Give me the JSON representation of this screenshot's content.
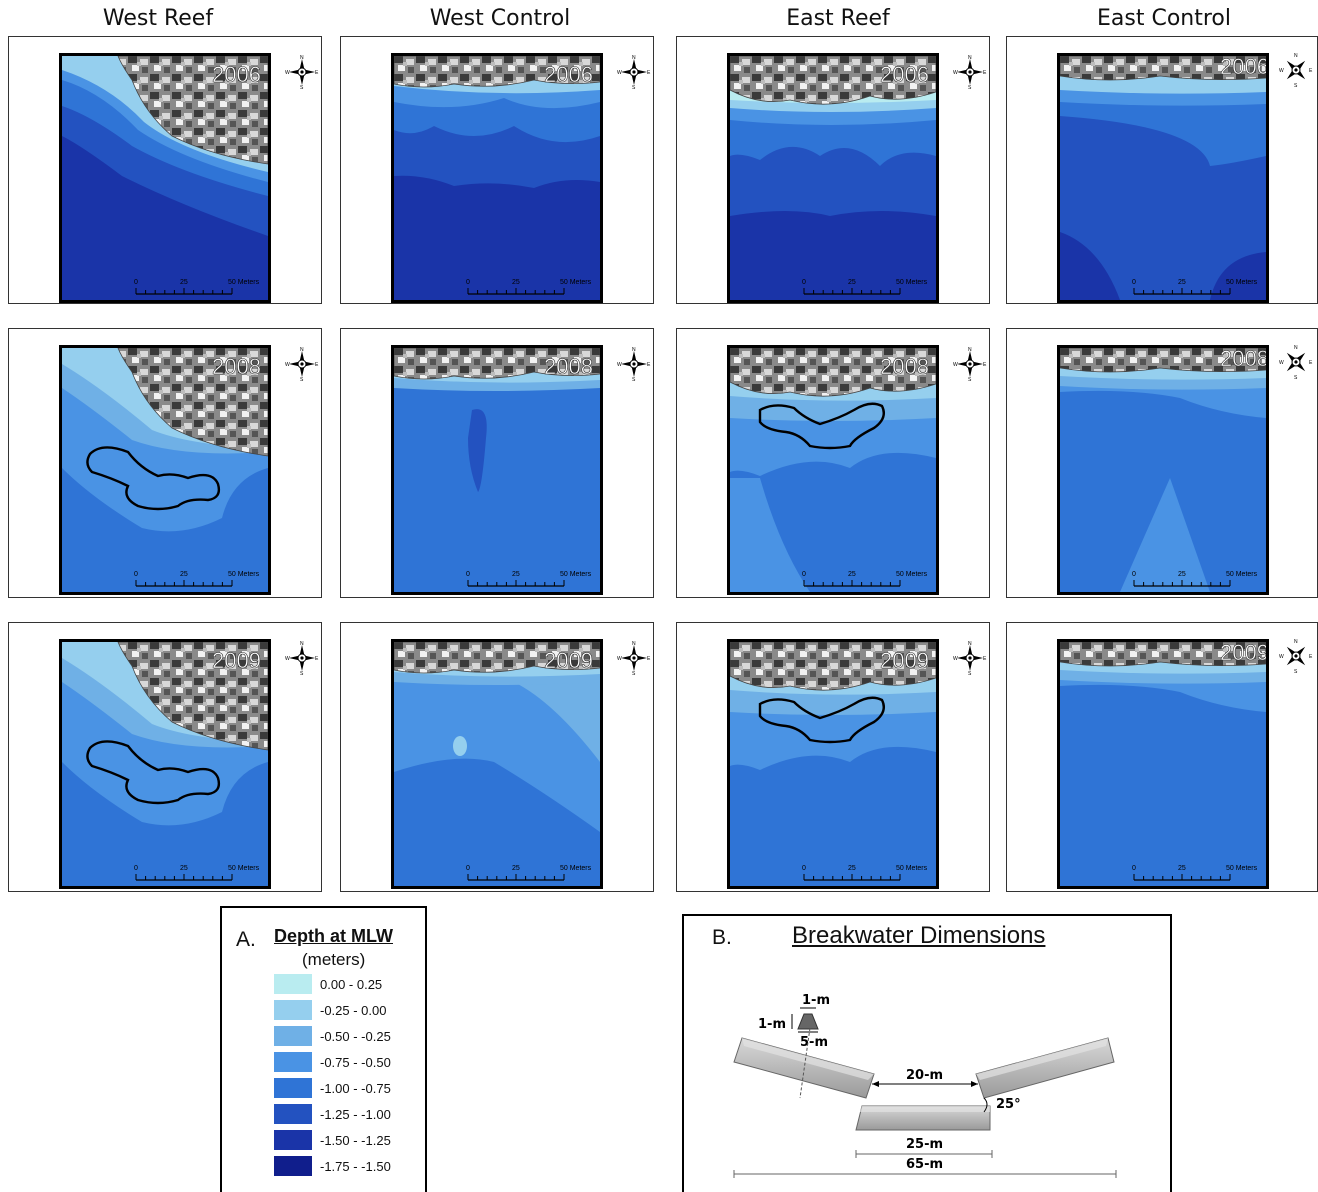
{
  "columns": [
    "West Reef",
    "West Control",
    "East Reef",
    "East Control"
  ],
  "years": [
    "2006",
    "2008",
    "2009"
  ],
  "scale_bar": {
    "ticks": [
      "0",
      "25",
      "50 Meters"
    ]
  },
  "compass": {
    "n": "N",
    "s": "S",
    "e": "E",
    "w": "W"
  },
  "legend": {
    "letter": "A.",
    "title": "Depth at MLW",
    "units": "(meters)",
    "classes": [
      {
        "label": "0.00 - 0.25",
        "color": "#b9ecf0"
      },
      {
        "label": "-0.25 - 0.00",
        "color": "#95cfee"
      },
      {
        "label": "-0.50 - -0.25",
        "color": "#6fb0e6"
      },
      {
        "label": "-0.75 - -0.50",
        "color": "#4a93e4"
      },
      {
        "label": "-1.00 - -0.75",
        "color": "#2f74d6"
      },
      {
        "label": "-1.25 - -1.00",
        "color": "#2352c0"
      },
      {
        "label": "-1.50 - -1.25",
        "color": "#1a34a8"
      },
      {
        "label": "-1.75 - -1.50",
        "color": "#101e8c"
      }
    ]
  },
  "breakwater": {
    "letter": "B.",
    "title": "Breakwater Dimensions",
    "top_width": "1-m",
    "height": "1-m",
    "base_width": "5-m",
    "gap": "20-m",
    "angle": "25°",
    "center_length": "25-m",
    "total_length": "65-m"
  }
}
